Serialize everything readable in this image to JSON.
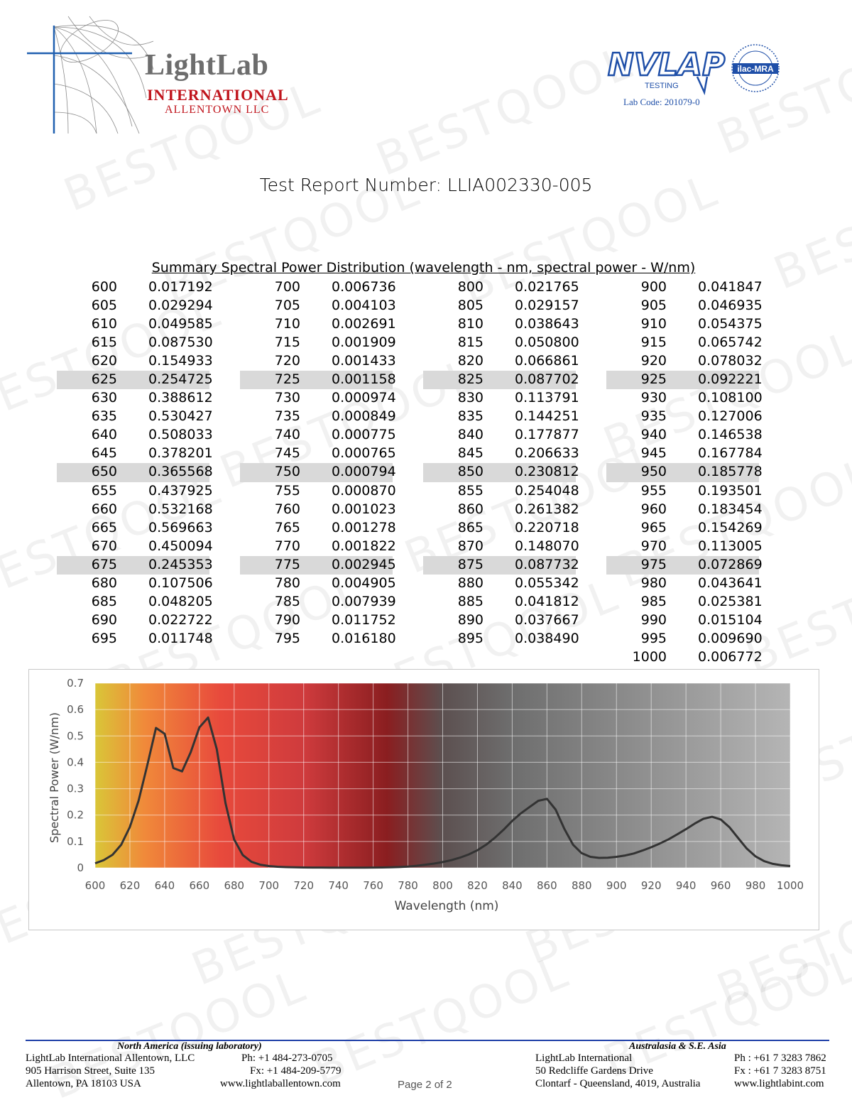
{
  "header": {
    "lab_name": "LightLab",
    "lab_international": "INTERNATIONAL",
    "lab_city": "ALLENTOWN LLC",
    "accreditation_logo": "NVLAP",
    "accreditation_sub": "TESTING",
    "ilac_logo": "ilac-MRA",
    "lab_code": "Lab Code: 201079-0"
  },
  "report_title": "Test Report Number: LLIA002330-005",
  "spd_title": "Summary Spectral Power Distribution (wavelength - nm, spectral power - W/nm)",
  "watermark_text": "BESTQOOL",
  "table": {
    "columns": [
      [
        [
          "600",
          "0.017192"
        ],
        [
          "605",
          "0.029294"
        ],
        [
          "610",
          "0.049585"
        ],
        [
          "615",
          "0.087530"
        ],
        [
          "620",
          "0.154933"
        ],
        [
          "625",
          "0.254725"
        ],
        [
          "630",
          "0.388612"
        ],
        [
          "635",
          "0.530427"
        ],
        [
          "640",
          "0.508033"
        ],
        [
          "645",
          "0.378201"
        ],
        [
          "650",
          "0.365568"
        ],
        [
          "655",
          "0.437925"
        ],
        [
          "660",
          "0.532168"
        ],
        [
          "665",
          "0.569663"
        ],
        [
          "670",
          "0.450094"
        ],
        [
          "675",
          "0.245353"
        ],
        [
          "680",
          "0.107506"
        ],
        [
          "685",
          "0.048205"
        ],
        [
          "690",
          "0.022722"
        ],
        [
          "695",
          "0.011748"
        ]
      ],
      [
        [
          "700",
          "0.006736"
        ],
        [
          "705",
          "0.004103"
        ],
        [
          "710",
          "0.002691"
        ],
        [
          "715",
          "0.001909"
        ],
        [
          "720",
          "0.001433"
        ],
        [
          "725",
          "0.001158"
        ],
        [
          "730",
          "0.000974"
        ],
        [
          "735",
          "0.000849"
        ],
        [
          "740",
          "0.000775"
        ],
        [
          "745",
          "0.000765"
        ],
        [
          "750",
          "0.000794"
        ],
        [
          "755",
          "0.000870"
        ],
        [
          "760",
          "0.001023"
        ],
        [
          "765",
          "0.001278"
        ],
        [
          "770",
          "0.001822"
        ],
        [
          "775",
          "0.002945"
        ],
        [
          "780",
          "0.004905"
        ],
        [
          "785",
          "0.007939"
        ],
        [
          "790",
          "0.011752"
        ],
        [
          "795",
          "0.016180"
        ]
      ],
      [
        [
          "800",
          "0.021765"
        ],
        [
          "805",
          "0.029157"
        ],
        [
          "810",
          "0.038643"
        ],
        [
          "815",
          "0.050800"
        ],
        [
          "820",
          "0.066861"
        ],
        [
          "825",
          "0.087702"
        ],
        [
          "830",
          "0.113791"
        ],
        [
          "835",
          "0.144251"
        ],
        [
          "840",
          "0.177877"
        ],
        [
          "845",
          "0.206633"
        ],
        [
          "850",
          "0.230812"
        ],
        [
          "855",
          "0.254048"
        ],
        [
          "860",
          "0.261382"
        ],
        [
          "865",
          "0.220718"
        ],
        [
          "870",
          "0.148070"
        ],
        [
          "875",
          "0.087732"
        ],
        [
          "880",
          "0.055342"
        ],
        [
          "885",
          "0.041812"
        ],
        [
          "890",
          "0.037667"
        ],
        [
          "895",
          "0.038490"
        ]
      ],
      [
        [
          "900",
          "0.041847"
        ],
        [
          "905",
          "0.046935"
        ],
        [
          "910",
          "0.054375"
        ],
        [
          "915",
          "0.065742"
        ],
        [
          "920",
          "0.078032"
        ],
        [
          "925",
          "0.092221"
        ],
        [
          "930",
          "0.108100"
        ],
        [
          "935",
          "0.127006"
        ],
        [
          "940",
          "0.146538"
        ],
        [
          "945",
          "0.167784"
        ],
        [
          "950",
          "0.185778"
        ],
        [
          "955",
          "0.193501"
        ],
        [
          "960",
          "0.183454"
        ],
        [
          "965",
          "0.154269"
        ],
        [
          "970",
          "0.113005"
        ],
        [
          "975",
          "0.072869"
        ],
        [
          "980",
          "0.043641"
        ],
        [
          "985",
          "0.025381"
        ],
        [
          "990",
          "0.015104"
        ],
        [
          "995",
          "0.009690"
        ],
        [
          "1000",
          "0.006772"
        ]
      ]
    ]
  },
  "chart_data": {
    "type": "line",
    "title": "",
    "xlabel": "Wavelength (nm)",
    "ylabel": "Spectral Power (W/nm)",
    "xlim": [
      600,
      1000
    ],
    "ylim": [
      0,
      0.7
    ],
    "xticks": [
      "600",
      "620",
      "640",
      "660",
      "680",
      "700",
      "720",
      "740",
      "760",
      "780",
      "800",
      "820",
      "840",
      "860",
      "880",
      "900",
      "920",
      "940",
      "960",
      "980",
      "1000"
    ],
    "yticks": [
      "0",
      "0.1",
      "0.2",
      "0.3",
      "0.4",
      "0.5",
      "0.6",
      "0.7"
    ],
    "grid": true,
    "line_color": "#333333",
    "series": [
      {
        "x": [
          600,
          605,
          610,
          615,
          620,
          625,
          630,
          635,
          640,
          645,
          650,
          655,
          660,
          665,
          670,
          675,
          680,
          685,
          690,
          695,
          700,
          705,
          710,
          715,
          720,
          725,
          730,
          735,
          740,
          745,
          750,
          755,
          760,
          765,
          770,
          775,
          780,
          785,
          790,
          795,
          800,
          805,
          810,
          815,
          820,
          825,
          830,
          835,
          840,
          845,
          850,
          855,
          860,
          865,
          870,
          875,
          880,
          885,
          890,
          895,
          900,
          905,
          910,
          915,
          920,
          925,
          930,
          935,
          940,
          945,
          950,
          955,
          960,
          965,
          970,
          975,
          980,
          985,
          990,
          995,
          1000
        ],
        "y": [
          0.017192,
          0.029294,
          0.049585,
          0.08753,
          0.154933,
          0.254725,
          0.388612,
          0.530427,
          0.508033,
          0.378201,
          0.365568,
          0.437925,
          0.532168,
          0.569663,
          0.450094,
          0.245353,
          0.107506,
          0.048205,
          0.022722,
          0.011748,
          0.006736,
          0.004103,
          0.002691,
          0.001909,
          0.001433,
          0.001158,
          0.000974,
          0.000849,
          0.000775,
          0.000765,
          0.000794,
          0.00087,
          0.001023,
          0.001278,
          0.001822,
          0.002945,
          0.004905,
          0.007939,
          0.011752,
          0.01618,
          0.021765,
          0.029157,
          0.038643,
          0.0508,
          0.066861,
          0.087702,
          0.113791,
          0.144251,
          0.177877,
          0.206633,
          0.230812,
          0.254048,
          0.261382,
          0.220718,
          0.14807,
          0.087732,
          0.055342,
          0.041812,
          0.037667,
          0.03849,
          0.041847,
          0.046935,
          0.054375,
          0.065742,
          0.078032,
          0.092221,
          0.1081,
          0.127006,
          0.146538,
          0.167784,
          0.185778,
          0.193501,
          0.183454,
          0.154269,
          0.113005,
          0.072869,
          0.043641,
          0.025381,
          0.015104,
          0.00969,
          0.006772
        ]
      }
    ]
  },
  "footer": {
    "na_heading": "North America (issuing laboratory)",
    "na_line1": "LightLab International Allentown, LLC",
    "na_line2": "905 Harrison Street, Suite 135",
    "na_line3": "Allentown, PA  18103   USA",
    "na_ph": "Ph: +1 484-273-0705",
    "na_fx": "Fx: +1 484-209-5779",
    "na_web": "www.lightlaballentown.com",
    "page": "Page 2 of 2",
    "au_heading": "Australasia & S.E. Asia",
    "au_line1": "LightLab International",
    "au_line2": "50 Redcliffe Gardens Drive",
    "au_line3": "Clontarf - Queensland, 4019, Australia",
    "au_ph": "Ph : +61 7 3283 7862",
    "au_fx": "Fx : +61 7 3283 8751",
    "au_web": "www.lightlabint.com"
  }
}
